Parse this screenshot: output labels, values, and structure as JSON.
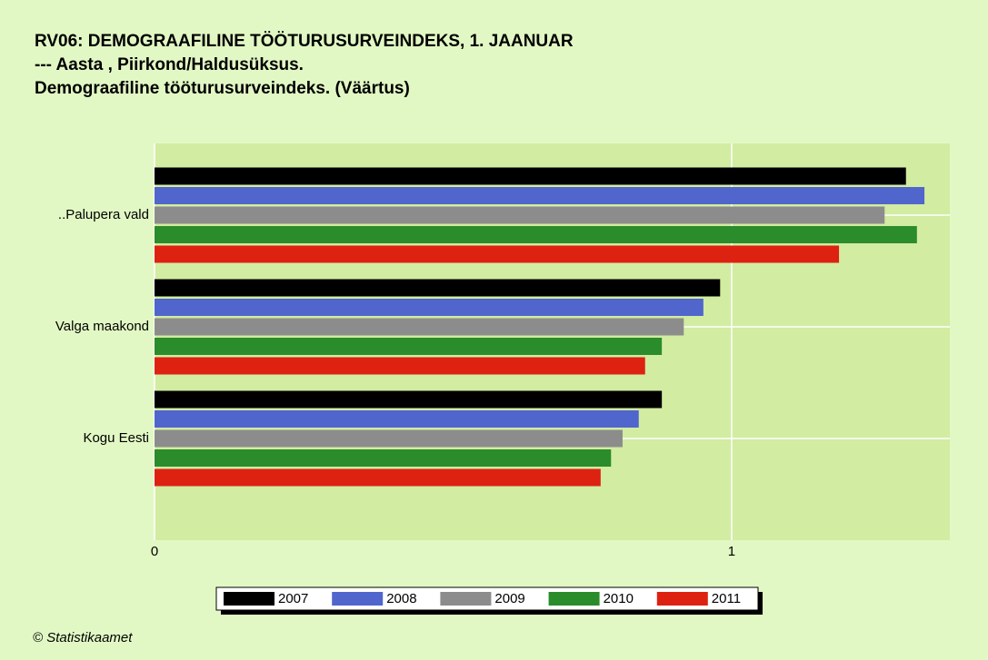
{
  "chart_data": {
    "type": "barh",
    "title": "RV06: DEMOGRAAFILINE TÖÖTURUSURVEINDEKS, 1. JAANUAR",
    "subtitle": [
      "--- Aasta , Piirkond/Haldusüksus.",
      "Demograafiline tööturusurveindeks. (Väärtus)"
    ],
    "categories": [
      "..Palupera vald",
      "Valga maakond",
      "Kogu Eesti"
    ],
    "series": [
      {
        "name": "2007",
        "color": "#000000",
        "values": [
          1.302,
          0.98,
          0.879
        ]
      },
      {
        "name": "2008",
        "color": "#5066cc",
        "values": [
          1.334,
          0.951,
          0.839
        ]
      },
      {
        "name": "2009",
        "color": "#8c8c8c",
        "values": [
          1.265,
          0.917,
          0.811
        ]
      },
      {
        "name": "2010",
        "color": "#2a8c2a",
        "values": [
          1.321,
          0.879,
          0.791
        ]
      },
      {
        "name": "2011",
        "color": "#dd2211",
        "values": [
          1.186,
          0.85,
          0.773
        ]
      }
    ],
    "xlim": [
      0,
      1.378
    ],
    "xticks": [
      0,
      1
    ],
    "grid": true,
    "source": "© Statistikaamet"
  }
}
